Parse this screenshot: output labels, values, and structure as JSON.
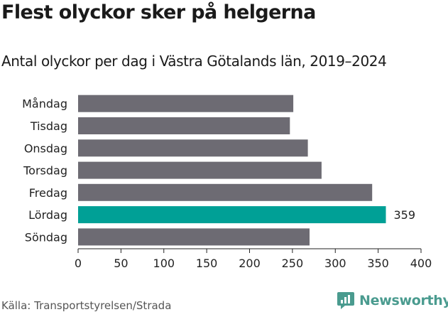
{
  "title": "Flest olyckor sker på helgerna",
  "subtitle": "Antal olyckor per dag i Västra Götalands län, 2019–2024",
  "source": "Källa: Transportstyrelsen/Strada",
  "brand": "Newsworthy",
  "colors": {
    "bar_default": "#6d6b73",
    "bar_highlight": "#00a096",
    "brand": "#4a9b8f"
  },
  "chart_data": {
    "type": "bar",
    "orientation": "horizontal",
    "categories": [
      "Måndag",
      "Tisdag",
      "Onsdag",
      "Torsdag",
      "Fredag",
      "Lördag",
      "Söndag"
    ],
    "values": [
      251,
      247,
      268,
      284,
      343,
      359,
      270
    ],
    "highlight_index": 5,
    "data_labels": [
      {
        "category": "Lördag",
        "text": "359"
      }
    ],
    "xlim": [
      0,
      400
    ],
    "xticks": [
      0,
      50,
      100,
      150,
      200,
      250,
      300,
      350,
      400
    ],
    "grid": false
  }
}
